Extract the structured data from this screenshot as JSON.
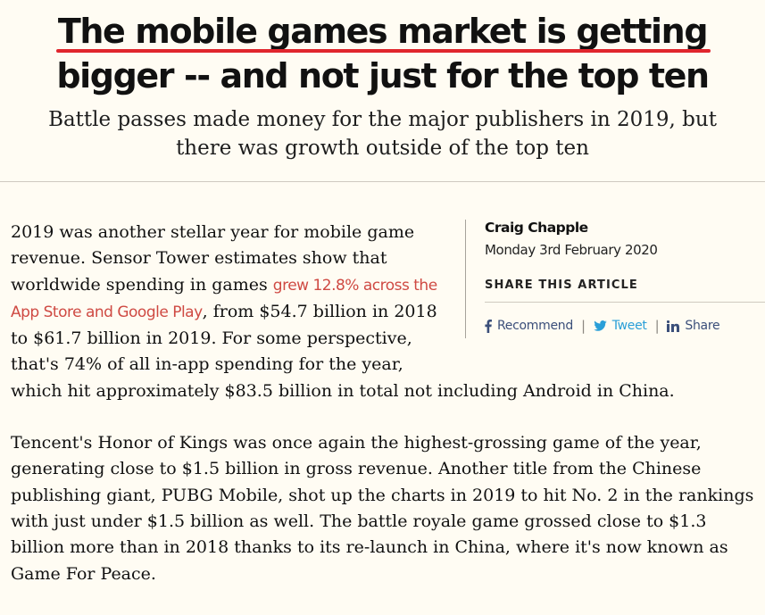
{
  "article": {
    "headline_line1": "The mobile games market is getting",
    "headline_line2": "bigger -- and not just for the top ten",
    "subheadline_line1": "Battle passes made money for the major publishers in 2019, but",
    "subheadline_line2": "there was growth outside of the top ten",
    "accent_color": "#e0262d"
  },
  "meta": {
    "author": "Craig Chapple",
    "date": "Monday 3rd February 2020",
    "share_heading": "SHARE THIS ARTICLE",
    "share": {
      "facebook_label": "Recommend",
      "twitter_label": "Tweet",
      "linkedin_label": "Share",
      "separator": "|",
      "facebook_icon": "facebook-icon",
      "twitter_icon": "twitter-icon",
      "linkedin_icon": "linkedin-icon"
    }
  },
  "body": {
    "p1_before": "2019 was another stellar year for mobile game revenue. Sensor Tower estimates show that worldwide spending in games ",
    "p1_link": "grew 12.8% across the App Store and Google Play",
    "p1_after": ", from $54.7 billion in 2018 to $61.7 billion in 2019. For some perspective, that's 74% of all in-app spending for the year, which hit approximately $83.5 billion in total not including Android in China.",
    "p2": "Tencent's Honor of Kings was once again the highest-grossing game of the year, generating close to $1.5 billion in gross revenue. Another title from the Chinese publishing giant, PUBG Mobile, shot up the charts in 2019 to hit No. 2 in the rankings with just under $1.5 billion as well. The battle royale game grossed close to $1.3 billion more than in 2018 thanks to its re-launch in China, where it's now known as Game For Peace.",
    "link_color": "#cf4a43"
  }
}
